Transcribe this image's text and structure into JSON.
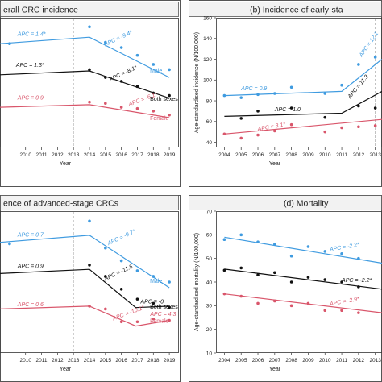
{
  "chart_data": [
    {
      "type": "scatter",
      "title": "(a) Overall CRC incidence",
      "title_visible": "erall CRC incidence",
      "xlabel": "Year",
      "ylabel": "",
      "x": [
        "2010",
        "2011",
        "2012",
        "2013",
        "2014",
        "2015",
        "2016",
        "2017",
        "2018",
        "2019"
      ],
      "xlim": [
        2008.4,
        2019.6
      ],
      "ylim": [
        0,
        100
      ],
      "show_y_ticks": false,
      "breakpoint": 2013,
      "series": [
        {
          "name": "Male",
          "color": "#3f9be0",
          "points": [
            [
              2009,
              80
            ],
            [
              2014,
              93
            ],
            [
              2015,
              81
            ],
            [
              2016,
              77
            ],
            [
              2017,
              71
            ],
            [
              2018,
              64
            ],
            [
              2019,
              60
            ]
          ],
          "trend": [
            [
              2008.4,
              80
            ],
            [
              2014,
              85
            ],
            [
              2019,
              54
            ]
          ],
          "labels": [
            {
              "text": "APC = 1.4*",
              "x": 2009.5,
              "y": 86
            },
            {
              "text": "APC = -9.4*",
              "x": 2015,
              "y": 78,
              "rotate": -25
            }
          ],
          "end_label": "Male"
        },
        {
          "name": "Both sexes",
          "color": "#111111",
          "points": [
            [
              2014,
              60
            ],
            [
              2015,
              54
            ],
            [
              2016,
              51
            ],
            [
              2017,
              47
            ],
            [
              2018,
              42
            ],
            [
              2019,
              40
            ]
          ],
          "trend": [
            [
              2008.4,
              56
            ],
            [
              2014,
              59
            ],
            [
              2019,
              38
            ]
          ],
          "labels": [
            {
              "text": "APC = 1.3*",
              "x": 2009.4,
              "y": 62
            },
            {
              "text": "APC = -8.1*",
              "x": 2015.3,
              "y": 51,
              "rotate": -25
            }
          ],
          "end_label": "Both sexes"
        },
        {
          "name": "Female",
          "color": "#d9566b",
          "points": [
            [
              2014,
              35
            ],
            [
              2015,
              34
            ],
            [
              2016,
              31
            ],
            [
              2017,
              30
            ],
            [
              2018,
              28
            ],
            [
              2019,
              25
            ]
          ],
          "trend": [
            [
              2008.4,
              31
            ],
            [
              2014,
              33
            ],
            [
              2019,
              23
            ]
          ],
          "labels": [
            {
              "text": "APC = 0.9",
              "x": 2009.5,
              "y": 37
            },
            {
              "text": "APC = -6.1*",
              "x": 2016.5,
              "y": 32,
              "rotate": -20
            }
          ],
          "end_label": "Female"
        }
      ]
    },
    {
      "type": "scatter",
      "title": "(b) Incidence of early-stage CRCs",
      "title_visible": "(b) Incidence of early-sta",
      "xlabel": "Year",
      "ylabel": "Age-standardised incidence (N/100,000)",
      "x": [
        "2004",
        "2005",
        "2006",
        "2007",
        "2008",
        "2009",
        "2010",
        "2011",
        "2012",
        "2013"
      ],
      "xlim": [
        2003.5,
        2013.4
      ],
      "ylim": [
        35,
        160
      ],
      "yticks": [
        40,
        60,
        80,
        100,
        120,
        140,
        160
      ],
      "breakpoint": 2013,
      "series": [
        {
          "name": "Male",
          "color": "#3f9be0",
          "points": [
            [
              2004,
              85
            ],
            [
              2005,
              83
            ],
            [
              2006,
              86
            ],
            [
              2007,
              87
            ],
            [
              2008,
              93
            ],
            [
              2010,
              87
            ],
            [
              2011,
              95
            ],
            [
              2012,
              115
            ],
            [
              2013,
              122
            ]
          ],
          "trend": [
            [
              2004,
              85
            ],
            [
              2011,
              89
            ],
            [
              2013.4,
              120
            ]
          ],
          "labels": [
            {
              "text": "APC = 0.9",
              "x": 2005,
              "y": 90
            },
            {
              "text": "APC = 12.1",
              "x": 2012.2,
              "y": 122,
              "rotate": -55
            }
          ]
        },
        {
          "name": "Both sexes",
          "color": "#111111",
          "points": [
            [
              2005,
              63
            ],
            [
              2006,
              70
            ],
            [
              2008,
              73
            ],
            [
              2010,
              64
            ],
            [
              2012,
              75
            ],
            [
              2013,
              73
            ]
          ],
          "trend": [
            [
              2004,
              65
            ],
            [
              2011,
              68
            ],
            [
              2013.4,
              89
            ]
          ],
          "labels": [
            {
              "text": "APC = 1.0",
              "x": 2007,
              "y": 70
            },
            {
              "text": "APC = 11.3",
              "x": 2011.5,
              "y": 82,
              "rotate": -50
            }
          ]
        },
        {
          "name": "Female",
          "color": "#d9566b",
          "points": [
            [
              2004,
              48
            ],
            [
              2005,
              44
            ],
            [
              2006,
              47
            ],
            [
              2007,
              51
            ],
            [
              2008,
              57
            ],
            [
              2010,
              50
            ],
            [
              2011,
              54
            ],
            [
              2012,
              55
            ],
            [
              2013,
              56
            ]
          ],
          "trend": [
            [
              2004,
              48
            ],
            [
              2013.4,
              62
            ]
          ],
          "labels": [
            {
              "text": "APC = 3.1*",
              "x": 2006,
              "y": 51,
              "rotate": -10
            }
          ]
        }
      ]
    },
    {
      "type": "scatter",
      "title": "(c) Incidence of advanced-stage CRCs",
      "title_visible": "ence of advanced-stage CRCs",
      "xlabel": "Year",
      "ylabel": "",
      "x": [
        "2010",
        "2011",
        "2012",
        "2013",
        "2014",
        "2015",
        "2016",
        "2017",
        "2018",
        "2019"
      ],
      "xlim": [
        2008.4,
        2019.6
      ],
      "ylim": [
        0,
        100
      ],
      "show_y_ticks": false,
      "breakpoint": 2013,
      "series": [
        {
          "name": "Male",
          "color": "#3f9be0",
          "points": [
            [
              2009,
              77
            ],
            [
              2014,
              93
            ],
            [
              2015,
              74
            ],
            [
              2016,
              65
            ],
            [
              2017,
              58
            ],
            [
              2018,
              54
            ],
            [
              2019,
              50
            ]
          ],
          "trend": [
            [
              2008.4,
              78
            ],
            [
              2014,
              83
            ],
            [
              2019,
              46
            ]
          ],
          "labels": [
            {
              "text": "APC = 0.7",
              "x": 2009.5,
              "y": 82
            },
            {
              "text": "APC = -9.7*",
              "x": 2015.2,
              "y": 76,
              "rotate": -25
            }
          ],
          "end_label": "Male"
        },
        {
          "name": "Both sexes",
          "color": "#111111",
          "points": [
            [
              2014,
              62
            ],
            [
              2015,
              54
            ],
            [
              2016,
              45
            ],
            [
              2017,
              38
            ],
            [
              2018,
              35
            ],
            [
              2019,
              32
            ]
          ],
          "trend": [
            [
              2008.4,
              56
            ],
            [
              2014,
              59
            ],
            [
              2016.9,
              32
            ],
            [
              2019,
              33
            ]
          ],
          "labels": [
            {
              "text": "APC = 0.9",
              "x": 2009.5,
              "y": 60
            },
            {
              "text": "APC = -11.5",
              "x": 2015,
              "y": 51,
              "rotate": -25
            },
            {
              "text": "APC = -0.",
              "x": 2017.2,
              "y": 35
            }
          ],
          "end_label": "Both sexes"
        },
        {
          "name": "Female",
          "color": "#d9566b",
          "points": [
            [
              2014,
              33
            ],
            [
              2015,
              31
            ],
            [
              2016,
              22
            ],
            [
              2017,
              22
            ],
            [
              2018,
              24
            ],
            [
              2019,
              23
            ]
          ],
          "trend": [
            [
              2008.4,
              31
            ],
            [
              2014,
              33
            ],
            [
              2016.9,
              19
            ],
            [
              2019,
              23
            ]
          ],
          "labels": [
            {
              "text": "APC = 0.6",
              "x": 2009.5,
              "y": 33
            },
            {
              "text": "APC = -10.1*",
              "x": 2015.5,
              "y": 23,
              "rotate": -20
            },
            {
              "text": "APC = 4.3",
              "x": 2017.8,
              "y": 26
            }
          ],
          "end_label": "Female"
        }
      ]
    },
    {
      "type": "scatter",
      "title": "(d) Mortality",
      "title_visible": "(d) Mortality",
      "xlabel": "Year",
      "ylabel": "Age-standardised mortality (N/100,000)",
      "x": [
        "2004",
        "2005",
        "2006",
        "2007",
        "2008",
        "2009",
        "2010",
        "2011",
        "2012",
        "2013"
      ],
      "xlim": [
        2003.5,
        2013.4
      ],
      "ylim": [
        10,
        70
      ],
      "yticks": [
        10,
        20,
        30,
        40,
        50,
        60,
        70
      ],
      "series": [
        {
          "name": "Male",
          "color": "#3f9be0",
          "points": [
            [
              2004,
              58
            ],
            [
              2005,
              60
            ],
            [
              2006,
              57
            ],
            [
              2007,
              56
            ],
            [
              2008,
              51
            ],
            [
              2009,
              55
            ],
            [
              2010,
              53
            ],
            [
              2011,
              52
            ],
            [
              2012,
              50
            ]
          ],
          "trend": [
            [
              2004,
              59
            ],
            [
              2013.4,
              48
            ]
          ],
          "labels": [
            {
              "text": "APC = -2.2*",
              "x": 2010.3,
              "y": 53,
              "rotate": -10
            }
          ]
        },
        {
          "name": "Both sexes",
          "color": "#111111",
          "points": [
            [
              2004,
              45
            ],
            [
              2005,
              46
            ],
            [
              2006,
              43
            ],
            [
              2007,
              44
            ],
            [
              2008,
              40
            ],
            [
              2009,
              42
            ],
            [
              2010,
              41
            ],
            [
              2011,
              40
            ],
            [
              2012,
              38
            ]
          ],
          "trend": [
            [
              2004,
              45.5
            ],
            [
              2013.4,
              37
            ]
          ],
          "labels": [
            {
              "text": "APC = -2.2*",
              "x": 2011,
              "y": 40
            }
          ]
        },
        {
          "name": "Female",
          "color": "#d9566b",
          "points": [
            [
              2004,
              35
            ],
            [
              2005,
              34
            ],
            [
              2006,
              31
            ],
            [
              2007,
              32
            ],
            [
              2008,
              30
            ],
            [
              2009,
              31
            ],
            [
              2010,
              28
            ],
            [
              2011,
              28
            ],
            [
              2012,
              27
            ]
          ],
          "trend": [
            [
              2004,
              35
            ],
            [
              2013.4,
              27
            ]
          ],
          "labels": [
            {
              "text": "APC = -2.9*",
              "x": 2010.3,
              "y": 30,
              "rotate": -10
            }
          ]
        }
      ]
    }
  ]
}
